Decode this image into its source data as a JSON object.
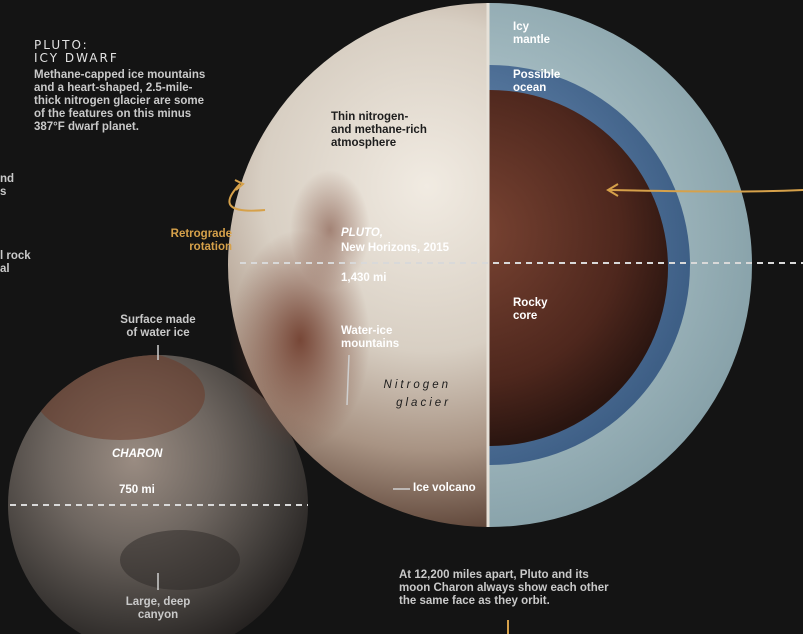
{
  "colors": {
    "background": "#141414",
    "accent_gold": "#d6a14a",
    "mantle": "#a9c4cc",
    "ocean": "#5a7fa6",
    "core": "#5a2f23"
  },
  "header": {
    "title_line1": "PLUTO:",
    "title_line2": "ICY DWARF",
    "description": [
      "Methane-capped ice mountains",
      "and a heart-shaped, 2.5-mile-",
      "thick nitrogen glacier are some",
      "of the features on this minus",
      "387°F dwarf planet."
    ]
  },
  "left_cutoff": {
    "line1": "nd",
    "line2": "s",
    "line3": "l rock",
    "line4": "al"
  },
  "rotation": {
    "line1": "Retrograde",
    "line2": "rotation"
  },
  "pluto": {
    "atmosphere": [
      "Thin nitrogen-",
      "and methane-rich",
      "atmosphere"
    ],
    "name": "PLUTO,",
    "mission": "New Horizons, 2015",
    "diameter": "1,430 mi",
    "mountains": [
      "Water-ice",
      "mountains"
    ],
    "glacier": [
      "Nitrogen",
      "glacier"
    ],
    "volcano": "Ice volcano",
    "mantle": [
      "Icy",
      "mantle"
    ],
    "ocean": [
      "Possible",
      "ocean"
    ],
    "core": [
      "Rocky",
      "core"
    ]
  },
  "charon": {
    "surface": [
      "Surface made",
      "of water ice"
    ],
    "name": "CHARON",
    "diameter": "750 mi",
    "canyon": [
      "Large, deep",
      "canyon"
    ]
  },
  "footer": {
    "caption": [
      "At 12,200 miles apart, Pluto and its",
      "moon Charon always show each other",
      "the same face as they orbit."
    ]
  }
}
